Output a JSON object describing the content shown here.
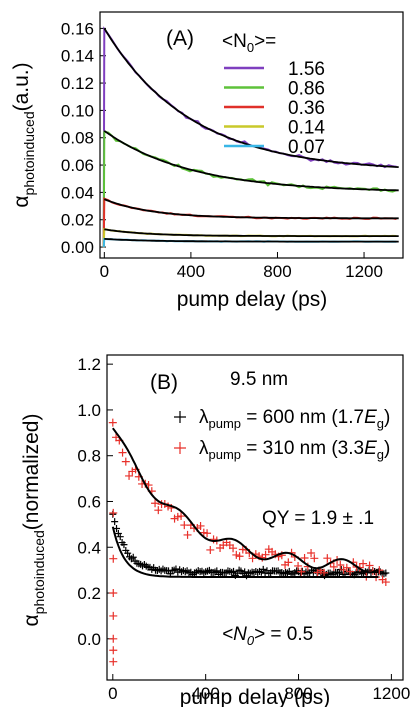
{
  "chart_data": [
    {
      "type": "line",
      "panel_label": "(A)",
      "xlabel": "pump delay (ps)",
      "ylabel_main": "α",
      "ylabel_sub": "photoinduced",
      "ylabel_unit": "(a.u.)",
      "xlim": [
        -20,
        1380
      ],
      "ylim": [
        -0.008,
        0.172
      ],
      "xticks": [
        0,
        400,
        800,
        1200
      ],
      "yticks": [
        0.0,
        0.02,
        0.04,
        0.06,
        0.08,
        0.1,
        0.12,
        0.14,
        0.16
      ],
      "ytick_labels": [
        "0.00",
        "0.02",
        "0.04",
        "0.06",
        "0.08",
        "0.10",
        "0.12",
        "0.14",
        "0.16"
      ],
      "legend_title_main": "<N",
      "legend_title_sub": "0",
      "legend_title_end": ">=",
      "legend_position": "top-right",
      "series": [
        {
          "name": "1.56",
          "color": "#7f3fbf",
          "A": 0.105,
          "tau": 400,
          "C": 0.055,
          "noise": 0.0018
        },
        {
          "name": "0.86",
          "color": "#5ec23a",
          "A": 0.045,
          "tau": 400,
          "C": 0.04,
          "noise": 0.0022
        },
        {
          "name": "0.36",
          "color": "#e0302a",
          "A": 0.014,
          "tau": 220,
          "C": 0.021,
          "noise": 0.0008
        },
        {
          "name": "0.14",
          "color": "#c9c92a",
          "A": 0.005,
          "tau": 200,
          "C": 0.008,
          "noise": 0.0004
        },
        {
          "name": "0.07",
          "color": "#39b6e6",
          "A": 0.002,
          "tau": 200,
          "C": 0.004,
          "noise": 0.0003
        }
      ],
      "fit_color": "#000000"
    },
    {
      "type": "scatter",
      "panel_label": "(B)",
      "xlabel": "pump delay (ps)",
      "ylabel_main": "α",
      "ylabel_sub": "photoinduced",
      "ylabel_unit": "(normalized)",
      "xlim": [
        -25,
        1250
      ],
      "ylim": [
        -0.18,
        1.24
      ],
      "xticks": [
        0,
        400,
        800,
        1200
      ],
      "yticks": [
        0.0,
        0.2,
        0.4,
        0.6,
        0.8,
        1.0,
        1.2
      ],
      "ytick_labels": [
        "0.0",
        "0.2",
        "0.4",
        "0.6",
        "0.8",
        "1.0",
        "1.2"
      ],
      "size_label": "9.5 nm",
      "qy_label": "QY = 1.9 ± .1",
      "n0_label_main": "<N",
      "n0_label_sub": "0",
      "n0_label_end": "> = 0.5",
      "series": [
        {
          "legend_prefix": "λ",
          "legend_sub": "pump",
          "legend_value": " = 600 nm (1.7",
          "legend_e": "E",
          "legend_esub": "g",
          "legend_close": ")",
          "color": "#000000",
          "A": 0.25,
          "tau": 60,
          "C": 0.29,
          "noise": 0.02,
          "fit": {
            "A": 0.22,
            "tau": 50,
            "C": 0.27
          }
        },
        {
          "legend_prefix": "λ",
          "legend_sub": "pump",
          "legend_value": " = 310 nm (3.3",
          "legend_e": "E",
          "legend_esub": "g",
          "legend_close": ")",
          "color": "#e8302a",
          "A": 0.62,
          "tau": 330,
          "C": 0.27,
          "noise": 0.09,
          "fit": {
            "A": 0.62,
            "tau": 300,
            "C": 0.3
          }
        }
      ]
    }
  ]
}
